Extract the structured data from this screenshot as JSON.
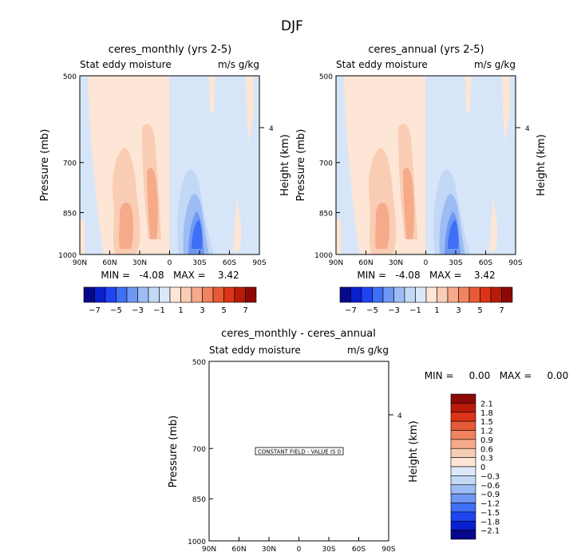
{
  "figure_title": "DJF",
  "palettes": {
    "diverging": [
      "#08088a",
      "#0a1fd0",
      "#1f45f0",
      "#3f6ff5",
      "#6f98f4",
      "#9dbcf3",
      "#c3d8f7",
      "#dbe8fa",
      "#fde6d6",
      "#f9cdb4",
      "#f5aa8a",
      "#f08460",
      "#e85a37",
      "#dd3317",
      "#b91b0a",
      "#8c0a05"
    ],
    "field_fills": {
      "negative_weak": "#d6e6f8",
      "positive_weak": "#fde6d6"
    }
  },
  "chart_data": [
    {
      "type": "heatmap",
      "title": "ceres_monthly (yrs 2-5)",
      "left_label": "Stat eddy moisture",
      "right_label": "m/s g/kg",
      "ylabel": "Pressure (mb)",
      "y2label": "Height (km)",
      "x_ticks": [
        "90N",
        "60N",
        "30N",
        "0",
        "30S",
        "60S",
        "90S"
      ],
      "y_ticks": [
        "500",
        "700",
        "850",
        "1000"
      ],
      "y_tick_values": [
        500,
        700,
        850,
        1000
      ],
      "y_scale": "log",
      "y2_ticks": [
        "4"
      ],
      "xlim": [
        90,
        -90
      ],
      "ylim": [
        1000,
        500
      ],
      "field_min": -4.08,
      "field_max": 3.42,
      "minmax_text": "MIN =   -4.08   MAX =    3.42",
      "colorbar": {
        "orientation": "horizontal",
        "levels": [
          -7,
          -6,
          -5,
          -4,
          -3,
          -2,
          -1,
          0,
          1,
          2,
          3,
          4,
          5,
          6,
          7
        ],
        "labels": [
          "-7",
          "-5",
          "-3",
          "-1",
          "1",
          "3",
          "5",
          "7"
        ]
      }
    },
    {
      "type": "heatmap",
      "title": "ceres_annual (yrs 2-5)",
      "left_label": "Stat eddy moisture",
      "right_label": "m/s g/kg",
      "ylabel": "Pressure (mb)",
      "y2label": "Height (km)",
      "x_ticks": [
        "90N",
        "60N",
        "30N",
        "0",
        "30S",
        "60S",
        "90S"
      ],
      "y_ticks": [
        "500",
        "700",
        "850",
        "1000"
      ],
      "y_tick_values": [
        500,
        700,
        850,
        1000
      ],
      "y_scale": "log",
      "y2_ticks": [
        "4"
      ],
      "xlim": [
        90,
        -90
      ],
      "ylim": [
        1000,
        500
      ],
      "field_min": -4.08,
      "field_max": 3.42,
      "minmax_text": "MIN =   -4.08   MAX =    3.42",
      "colorbar": {
        "orientation": "horizontal",
        "levels": [
          -7,
          -6,
          -5,
          -4,
          -3,
          -2,
          -1,
          0,
          1,
          2,
          3,
          4,
          5,
          6,
          7
        ],
        "labels": [
          "-7",
          "-5",
          "-3",
          "-1",
          "1",
          "3",
          "5",
          "7"
        ]
      }
    },
    {
      "type": "heatmap",
      "title": "ceres_monthly - ceres_annual",
      "left_label": "Stat eddy moisture",
      "right_label": "m/s g/kg",
      "ylabel": "Pressure (mb)",
      "y2label": "Height (km)",
      "x_ticks": [
        "90N",
        "60N",
        "30N",
        "0",
        "30S",
        "60S",
        "90S"
      ],
      "y_ticks": [
        "500",
        "700",
        "850",
        "1000"
      ],
      "y_tick_values": [
        500,
        700,
        850,
        1000
      ],
      "y_scale": "log",
      "y2_ticks": [
        "4"
      ],
      "xlim": [
        90,
        -90
      ],
      "ylim": [
        1000,
        500
      ],
      "field_min": 0.0,
      "field_max": 0.0,
      "minmax_text": "MIN =     0.00   MAX =     0.00",
      "constant_field_text": "CONSTANT FIELD - VALUE IS 0",
      "colorbar": {
        "orientation": "vertical",
        "levels": [
          -2.1,
          -1.8,
          -1.5,
          -1.2,
          -0.9,
          -0.6,
          -0.3,
          0,
          0.3,
          0.6,
          0.9,
          1.2,
          1.5,
          1.8,
          2.1
        ],
        "labels": [
          "2.1",
          "1.8",
          "1.5",
          "1.2",
          "0.9",
          "0.6",
          "0.3",
          "0",
          "-0.3",
          "-0.6",
          "-0.9",
          "-1.2",
          "-1.5",
          "-1.8",
          "-2.1"
        ]
      }
    }
  ]
}
